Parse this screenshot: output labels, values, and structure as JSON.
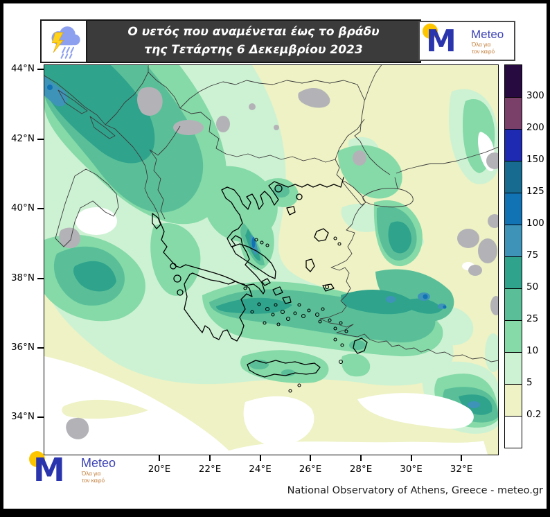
{
  "header": {
    "title_line1": "Ο υετός που αναμένεται έως το βράδυ",
    "title_line2": "της Τετάρτης 6 Δεκεμβρίου 2023"
  },
  "logo": {
    "name": "Meteo",
    "tagline_line1": "Όλα για",
    "tagline_line2": "τον καιρό",
    "brand_blue": "#2a34ad",
    "sun_yellow": "#fdc500",
    "tagline_orange": "#c07a35"
  },
  "map": {
    "y_axis_labels": [
      "44°N",
      "42°N",
      "40°N",
      "38°N",
      "36°N",
      "34°N"
    ],
    "x_axis_labels": [
      "20°E",
      "22°E",
      "24°E",
      "26°E",
      "28°E",
      "30°E",
      "32°E"
    ]
  },
  "colorbar": {
    "labels_top_to_bottom": [
      "300",
      "200",
      "150",
      "125",
      "100",
      "75",
      "50",
      "25",
      "10",
      "5",
      "0.2"
    ],
    "colors_top_to_bottom": [
      "#260a40",
      "#7b4069",
      "#1f2ab2",
      "#176a90",
      "#1172b4",
      "#3e93b8",
      "#2fa38c",
      "#5abf98",
      "#85daa8",
      "#cdf2d3",
      "#eef2c4",
      "#ffffff"
    ],
    "nodata_gray": "#b3b3b7"
  },
  "footer": {
    "attribution": "National Observatory of Athens, Greece - meteo.gr"
  }
}
